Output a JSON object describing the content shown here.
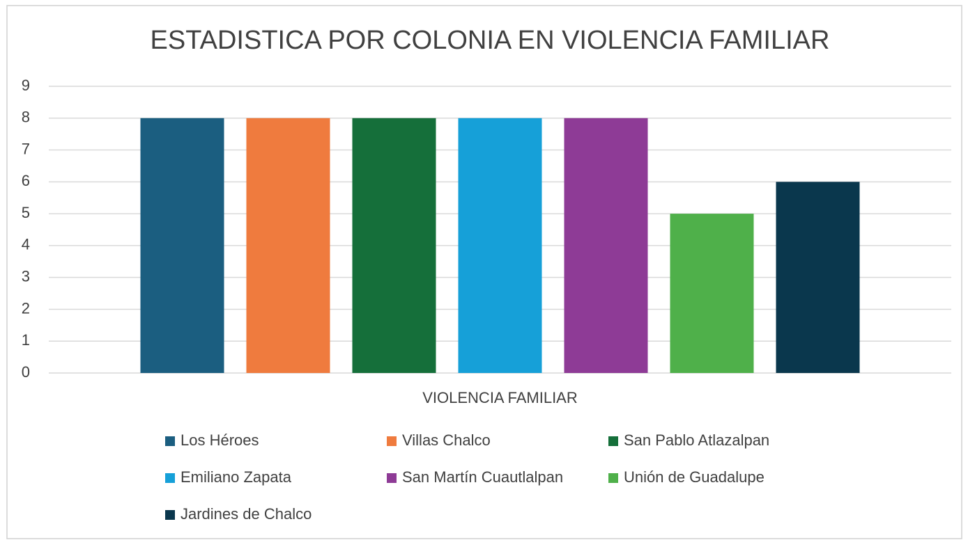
{
  "chart_data": {
    "type": "bar",
    "title": "ESTADISTICA POR COLONIA EN VIOLENCIA FAMILIAR",
    "categories": [
      "VIOLENCIA FAMILIAR"
    ],
    "series": [
      {
        "name": "Los Héroes",
        "color": "#1b5e80",
        "values": [
          8
        ]
      },
      {
        "name": "Villas Chalco",
        "color": "#ef7b3e",
        "values": [
          8
        ]
      },
      {
        "name": "San Pablo Atlazalpan",
        "color": "#156f3a",
        "values": [
          8
        ]
      },
      {
        "name": "Emiliano Zapata",
        "color": "#16a0d8",
        "values": [
          8
        ]
      },
      {
        "name": "San Martín Cuautlalpan",
        "color": "#8e3b96",
        "values": [
          8
        ]
      },
      {
        "name": "Unión de Guadalupe",
        "color": "#4fb04a",
        "values": [
          5
        ]
      },
      {
        "name": "Jardines de Chalco",
        "color": "#0a374d",
        "values": [
          6
        ]
      }
    ],
    "ylim": [
      0,
      9
    ],
    "yticks": [
      0,
      1,
      2,
      3,
      4,
      5,
      6,
      7,
      8,
      9
    ],
    "grid": true,
    "legend": "bottom"
  }
}
